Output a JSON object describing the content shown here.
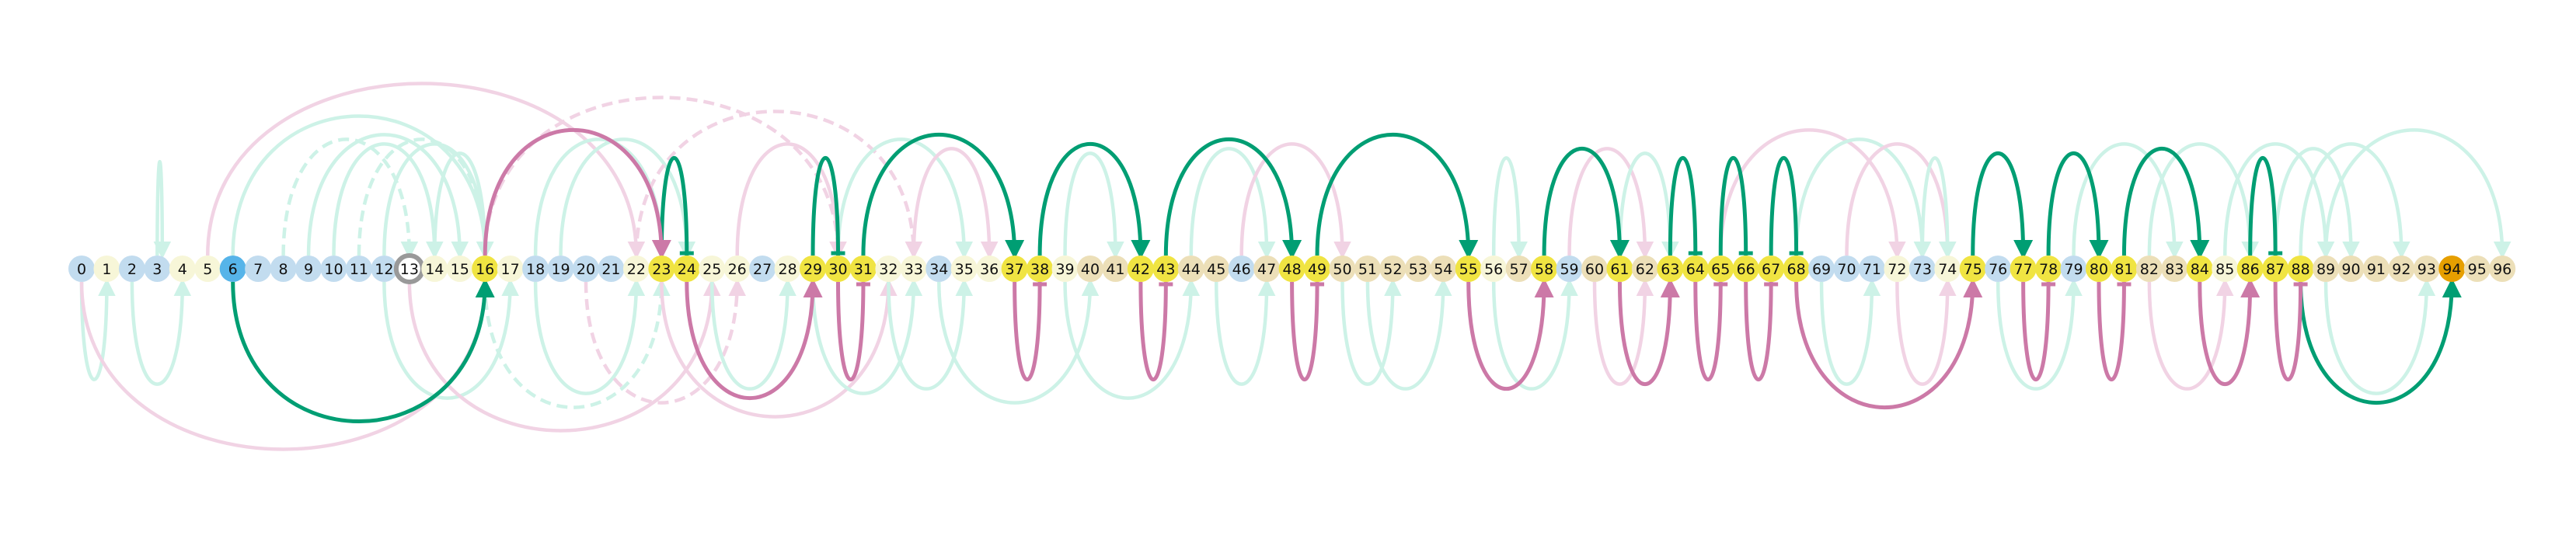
{
  "node_labels": [
    "0",
    "1",
    "2",
    "3",
    "4",
    "5",
    "6",
    "7",
    "8",
    "9",
    "10",
    "11",
    "12",
    "13",
    "14",
    "15",
    "16",
    "17",
    "18",
    "19",
    "20",
    "21",
    "22",
    "23",
    "24",
    "25",
    "26",
    "27",
    "28",
    "29",
    "30",
    "31",
    "32",
    "33",
    "34",
    "35",
    "36",
    "37",
    "38",
    "39",
    "40",
    "41",
    "42",
    "43",
    "44",
    "45",
    "46",
    "47",
    "48",
    "49",
    "50",
    "51",
    "52",
    "53",
    "54",
    "55",
    "56",
    "57",
    "58",
    "59",
    "60",
    "61",
    "62",
    "63",
    "64",
    "65",
    "66",
    "67",
    "68",
    "69",
    "70",
    "71",
    "72",
    "73",
    "74",
    "75",
    "76",
    "77",
    "78",
    "79",
    "80",
    "81",
    "82",
    "83",
    "84",
    "85",
    "86",
    "87",
    "88",
    "89",
    "90",
    "91",
    "92",
    "93",
    "94",
    "95",
    "96"
  ],
  "node_types": [
    "b",
    "c",
    "b",
    "b",
    "c",
    "c",
    "s",
    "b",
    "b",
    "b",
    "b",
    "b",
    "b",
    "r",
    "c",
    "c",
    "y",
    "c",
    "b",
    "b",
    "b",
    "b",
    "c",
    "y",
    "y",
    "c",
    "c",
    "b",
    "c",
    "y",
    "y",
    "y",
    "c",
    "c",
    "b",
    "c",
    "c",
    "y",
    "y",
    "c",
    "t",
    "t",
    "y",
    "y",
    "t",
    "t",
    "b",
    "t",
    "y",
    "y",
    "t",
    "t",
    "t",
    "t",
    "t",
    "y",
    "c",
    "t",
    "y",
    "b",
    "t",
    "y",
    "t",
    "y",
    "y",
    "y",
    "y",
    "y",
    "y",
    "b",
    "b",
    "b",
    "c",
    "b",
    "c",
    "y",
    "b",
    "y",
    "y",
    "b",
    "y",
    "y",
    "t",
    "t",
    "y",
    "c",
    "y",
    "y",
    "y",
    "t",
    "t",
    "t",
    "t",
    "t",
    "o",
    "t",
    "t"
  ],
  "colors": {
    "b": "#c2dcef",
    "c": "#f7f6d8",
    "y": "#f0e442",
    "t": "#ecdfb8",
    "s": "#56b4e9",
    "o": "#e69f00",
    "ring": "#999999",
    "green": "#009e73",
    "pink": "#cc79a7",
    "green_faint": "#cdf2e7",
    "pink_faint": "#f1d3e4"
  },
  "edges_strong": [
    {
      "from": 23,
      "to": 24,
      "side": "top",
      "color": "green",
      "head": "bar"
    },
    {
      "from": 29,
      "to": 30,
      "side": "top",
      "color": "green",
      "head": "bar"
    },
    {
      "from": 31,
      "to": 37,
      "side": "top",
      "color": "green",
      "head": "arrow"
    },
    {
      "from": 38,
      "to": 42,
      "side": "top",
      "color": "green",
      "head": "arrow"
    },
    {
      "from": 43,
      "to": 48,
      "side": "top",
      "color": "green",
      "head": "arrow"
    },
    {
      "from": 49,
      "to": 55,
      "side": "top",
      "color": "green",
      "head": "arrow"
    },
    {
      "from": 58,
      "to": 61,
      "side": "top",
      "color": "green",
      "head": "arrow"
    },
    {
      "from": 63,
      "to": 64,
      "side": "top",
      "color": "green",
      "head": "bar"
    },
    {
      "from": 65,
      "to": 66,
      "side": "top",
      "color": "green",
      "head": "bar"
    },
    {
      "from": 67,
      "to": 68,
      "side": "top",
      "color": "green",
      "head": "bar"
    },
    {
      "from": 75,
      "to": 77,
      "side": "top",
      "color": "green",
      "head": "arrow"
    },
    {
      "from": 78,
      "to": 80,
      "side": "top",
      "color": "green",
      "head": "arrow"
    },
    {
      "from": 81,
      "to": 84,
      "side": "top",
      "color": "green",
      "head": "arrow"
    },
    {
      "from": 86,
      "to": 87,
      "side": "top",
      "color": "green",
      "head": "bar"
    },
    {
      "from": 16,
      "to": 23,
      "side": "top",
      "color": "pink",
      "head": "arrow"
    },
    {
      "from": 6,
      "to": 16,
      "side": "bottom",
      "color": "green",
      "head": "arrow"
    },
    {
      "from": 88,
      "to": 94,
      "side": "bottom",
      "color": "green",
      "head": "arrow"
    },
    {
      "from": 24,
      "to": 29,
      "side": "bottom",
      "color": "pink",
      "head": "arrow"
    },
    {
      "from": 30,
      "to": 31,
      "side": "bottom",
      "color": "pink",
      "head": "bar"
    },
    {
      "from": 37,
      "to": 38,
      "side": "bottom",
      "color": "pink",
      "head": "bar"
    },
    {
      "from": 42,
      "to": 43,
      "side": "bottom",
      "color": "pink",
      "head": "bar"
    },
    {
      "from": 48,
      "to": 49,
      "side": "bottom",
      "color": "pink",
      "head": "bar"
    },
    {
      "from": 55,
      "to": 58,
      "side": "bottom",
      "color": "pink",
      "head": "arrow"
    },
    {
      "from": 61,
      "to": 63,
      "side": "bottom",
      "color": "pink",
      "head": "arrow"
    },
    {
      "from": 64,
      "to": 65,
      "side": "bottom",
      "color": "pink",
      "head": "bar"
    },
    {
      "from": 66,
      "to": 67,
      "side": "bottom",
      "color": "pink",
      "head": "bar"
    },
    {
      "from": 68,
      "to": 75,
      "side": "bottom",
      "color": "pink",
      "head": "arrow"
    },
    {
      "from": 77,
      "to": 78,
      "side": "bottom",
      "color": "pink",
      "head": "bar"
    },
    {
      "from": 80,
      "to": 81,
      "side": "bottom",
      "color": "pink",
      "head": "bar"
    },
    {
      "from": 84,
      "to": 86,
      "side": "bottom",
      "color": "pink",
      "head": "arrow"
    },
    {
      "from": 87,
      "to": 88,
      "side": "bottom",
      "color": "pink",
      "head": "bar"
    }
  ],
  "edges_faint": [
    {
      "from": 3,
      "to": 3,
      "side": "top",
      "color": "green_faint"
    },
    {
      "from": 8,
      "to": 13,
      "side": "top",
      "color": "green_faint",
      "dash": true
    },
    {
      "from": 10,
      "to": 14,
      "side": "top",
      "color": "green_faint"
    },
    {
      "from": 11,
      "to": 16,
      "side": "top",
      "color": "green_faint",
      "dash": true
    },
    {
      "from": 12,
      "to": 16,
      "side": "top",
      "color": "green_faint"
    },
    {
      "from": 9,
      "to": 15,
      "side": "top",
      "color": "green_faint"
    },
    {
      "from": 6,
      "to": 16,
      "side": "top",
      "color": "green_faint"
    },
    {
      "from": 14,
      "to": 16,
      "side": "top",
      "color": "green_faint"
    },
    {
      "from": 5,
      "to": 22,
      "side": "top",
      "color": "pink_faint"
    },
    {
      "from": 18,
      "to": 23,
      "side": "top",
      "color": "green_faint"
    },
    {
      "from": 19,
      "to": 24,
      "side": "top",
      "color": "green_faint"
    },
    {
      "from": 16,
      "to": 30,
      "side": "top",
      "color": "pink_faint",
      "dash": true
    },
    {
      "from": 22,
      "to": 33,
      "side": "top",
      "color": "pink_faint",
      "dash": true
    },
    {
      "from": 26,
      "to": 30,
      "side": "top",
      "color": "pink_faint"
    },
    {
      "from": 30,
      "to": 35,
      "side": "top",
      "color": "green_faint"
    },
    {
      "from": 33,
      "to": 36,
      "side": "top",
      "color": "pink_faint"
    },
    {
      "from": 39,
      "to": 41,
      "side": "top",
      "color": "green_faint"
    },
    {
      "from": 44,
      "to": 47,
      "side": "top",
      "color": "green_faint"
    },
    {
      "from": 46,
      "to": 50,
      "side": "top",
      "color": "pink_faint"
    },
    {
      "from": 56,
      "to": 57,
      "side": "top",
      "color": "green_faint"
    },
    {
      "from": 59,
      "to": 62,
      "side": "top",
      "color": "pink_faint"
    },
    {
      "from": 61,
      "to": 63,
      "side": "top",
      "color": "green_faint"
    },
    {
      "from": 65,
      "to": 72,
      "side": "top",
      "color": "pink_faint"
    },
    {
      "from": 68,
      "to": 73,
      "side": "top",
      "color": "green_faint"
    },
    {
      "from": 70,
      "to": 74,
      "side": "top",
      "color": "pink_faint"
    },
    {
      "from": 73,
      "to": 74,
      "side": "top",
      "color": "green_faint"
    },
    {
      "from": 79,
      "to": 83,
      "side": "top",
      "color": "green_faint"
    },
    {
      "from": 82,
      "to": 86,
      "side": "top",
      "color": "green_faint"
    },
    {
      "from": 85,
      "to": 89,
      "side": "top",
      "color": "green_faint"
    },
    {
      "from": 87,
      "to": 90,
      "side": "top",
      "color": "green_faint"
    },
    {
      "from": 88,
      "to": 92,
      "side": "top",
      "color": "green_faint"
    },
    {
      "from": 89,
      "to": 96,
      "side": "top",
      "color": "green_faint"
    },
    {
      "from": 0,
      "to": 1,
      "side": "bottom",
      "color": "green_faint"
    },
    {
      "from": 2,
      "to": 4,
      "side": "bottom",
      "color": "green_faint"
    },
    {
      "from": 0,
      "to": 16,
      "side": "bottom",
      "color": "pink_faint"
    },
    {
      "from": 12,
      "to": 17,
      "side": "bottom",
      "color": "green_faint"
    },
    {
      "from": 16,
      "to": 23,
      "side": "bottom",
      "color": "green_faint",
      "dash": true
    },
    {
      "from": 13,
      "to": 25,
      "side": "bottom",
      "color": "pink_faint"
    },
    {
      "from": 18,
      "to": 22,
      "side": "bottom",
      "color": "green_faint"
    },
    {
      "from": 20,
      "to": 26,
      "side": "bottom",
      "color": "pink_faint",
      "dash": true
    },
    {
      "from": 23,
      "to": 32,
      "side": "bottom",
      "color": "pink_faint"
    },
    {
      "from": 25,
      "to": 28,
      "side": "bottom",
      "color": "green_faint"
    },
    {
      "from": 29,
      "to": 33,
      "side": "bottom",
      "color": "green_faint"
    },
    {
      "from": 32,
      "to": 35,
      "side": "bottom",
      "color": "green_faint"
    },
    {
      "from": 34,
      "to": 40,
      "side": "bottom",
      "color": "green_faint"
    },
    {
      "from": 39,
      "to": 44,
      "side": "bottom",
      "color": "green_faint"
    },
    {
      "from": 45,
      "to": 47,
      "side": "bottom",
      "color": "green_faint"
    },
    {
      "from": 50,
      "to": 52,
      "side": "bottom",
      "color": "green_faint"
    },
    {
      "from": 51,
      "to": 54,
      "side": "bottom",
      "color": "green_faint"
    },
    {
      "from": 56,
      "to": 59,
      "side": "bottom",
      "color": "green_faint"
    },
    {
      "from": 60,
      "to": 62,
      "side": "bottom",
      "color": "pink_faint"
    },
    {
      "from": 69,
      "to": 71,
      "side": "bottom",
      "color": "green_faint"
    },
    {
      "from": 72,
      "to": 74,
      "side": "bottom",
      "color": "pink_faint"
    },
    {
      "from": 76,
      "to": 79,
      "side": "bottom",
      "color": "green_faint"
    },
    {
      "from": 82,
      "to": 85,
      "side": "bottom",
      "color": "pink_faint"
    },
    {
      "from": 89,
      "to": 93,
      "side": "bottom",
      "color": "green_faint"
    }
  ]
}
